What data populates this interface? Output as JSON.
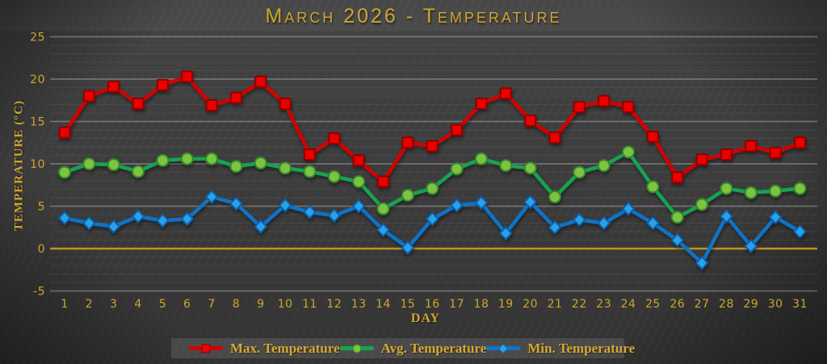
{
  "page": {
    "background_color": "#3a3a3a",
    "accent_gold": "#d2a62f"
  },
  "chart_data": {
    "type": "line",
    "title": "March 2026 - Temperature",
    "xlabel": "Day",
    "ylabel": "Temperature (°C)",
    "x": [
      1,
      2,
      3,
      4,
      5,
      6,
      7,
      8,
      9,
      10,
      11,
      12,
      13,
      14,
      15,
      16,
      17,
      18,
      19,
      20,
      21,
      22,
      23,
      24,
      25,
      26,
      27,
      28,
      29,
      30,
      31
    ],
    "ylim": [
      -5,
      25
    ],
    "y_ticks": [
      25,
      20,
      15,
      10,
      5,
      0,
      -5
    ],
    "y_major_step": 5,
    "y_minor_step": 1,
    "grid": "on",
    "legend_position": "bottom",
    "zero_line_color": "#bd9322",
    "grid_major_color": "rgba(255,255,255,0.28)",
    "grid_minor_color": "rgba(255,255,255,0.06)",
    "series": [
      {
        "key": "max",
        "name": "Max. Temperature",
        "marker": "square",
        "line_color": "#d40000",
        "marker_fill": "#ea0505",
        "marker_stroke": "#8f0000",
        "values": [
          13.7,
          18.0,
          19.1,
          17.1,
          19.3,
          20.3,
          16.9,
          17.8,
          19.7,
          17.1,
          11.1,
          13.0,
          10.4,
          7.9,
          12.5,
          12.1,
          14.0,
          17.1,
          18.3,
          15.1,
          13.1,
          16.7,
          17.4,
          16.7,
          13.2,
          8.4,
          10.5,
          11.1,
          12.1,
          11.3,
          12.5
        ]
      },
      {
        "key": "avg",
        "name": "Avg. Temperature",
        "marker": "circle",
        "line_color": "#14a351",
        "marker_fill": "#7dc342",
        "marker_stroke": "#35882b",
        "values": [
          9.0,
          10.0,
          9.9,
          9.1,
          10.4,
          10.6,
          10.6,
          9.7,
          10.1,
          9.5,
          9.1,
          8.5,
          7.9,
          4.7,
          6.3,
          7.1,
          9.4,
          10.6,
          9.8,
          9.5,
          6.1,
          9.0,
          9.8,
          11.4,
          7.3,
          3.7,
          5.2,
          7.1,
          6.6,
          6.8,
          7.1
        ]
      },
      {
        "key": "min",
        "name": "Min. Temperature",
        "marker": "diamond",
        "line_color": "#1173c8",
        "marker_fill": "#2aa2ea",
        "marker_stroke": "#0d5fa8",
        "values": [
          3.6,
          3.0,
          2.6,
          3.8,
          3.3,
          3.5,
          6.1,
          5.3,
          2.6,
          5.1,
          4.3,
          3.9,
          5.0,
          2.2,
          0.1,
          3.5,
          5.1,
          5.4,
          1.8,
          5.5,
          2.5,
          3.4,
          3.0,
          4.7,
          3.0,
          1.0,
          -1.7,
          3.8,
          0.3,
          3.7,
          2.0
        ]
      }
    ]
  }
}
